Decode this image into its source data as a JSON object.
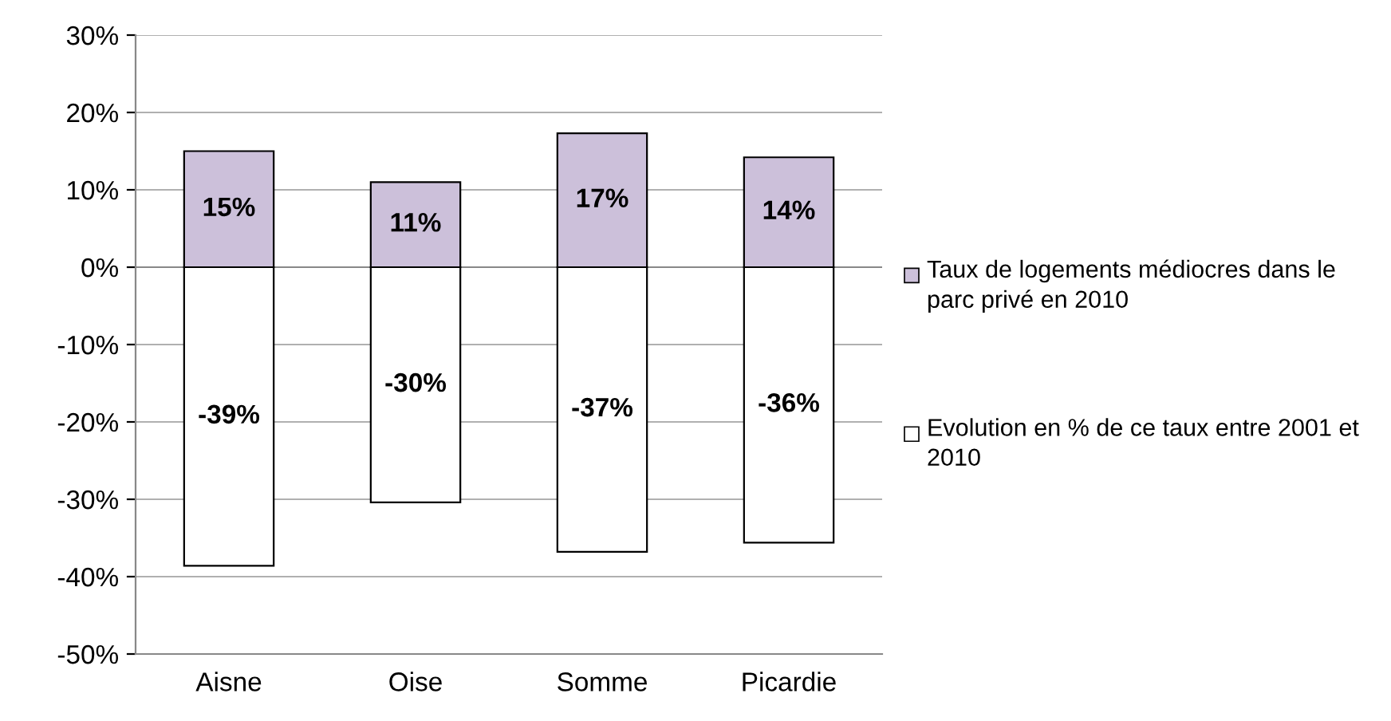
{
  "chart_data": {
    "type": "bar",
    "categories": [
      "Aisne",
      "Oise",
      "Somme",
      "Picardie"
    ],
    "series": [
      {
        "name": "Taux de logements médiocres dans le parc privé en 2010",
        "color": "#ccc0da",
        "values": [
          15,
          11,
          17.3,
          14.2
        ],
        "value_labels": [
          "15%",
          "11%",
          "17%",
          "14%"
        ]
      },
      {
        "name": "Evolution en % de ce taux entre 2001 et 2010",
        "color": "#ffffff",
        "values": [
          -38.6,
          -30.4,
          -36.8,
          -35.6
        ],
        "value_labels": [
          "-39%",
          "-30%",
          "-37%",
          "-36%"
        ]
      }
    ],
    "ylim": [
      -50,
      30
    ],
    "yticks": [
      {
        "value": -50,
        "label": "-50%"
      },
      {
        "value": -40,
        "label": "-40%"
      },
      {
        "value": -30,
        "label": "-30%"
      },
      {
        "value": -20,
        "label": "-20%"
      },
      {
        "value": -10,
        "label": "-10%"
      },
      {
        "value": 0,
        "label": "0%"
      },
      {
        "value": 10,
        "label": "10%"
      },
      {
        "value": 20,
        "label": "20%"
      },
      {
        "value": 30,
        "label": "30%"
      }
    ],
    "grid": "y",
    "legend": "right",
    "stacked": true
  }
}
